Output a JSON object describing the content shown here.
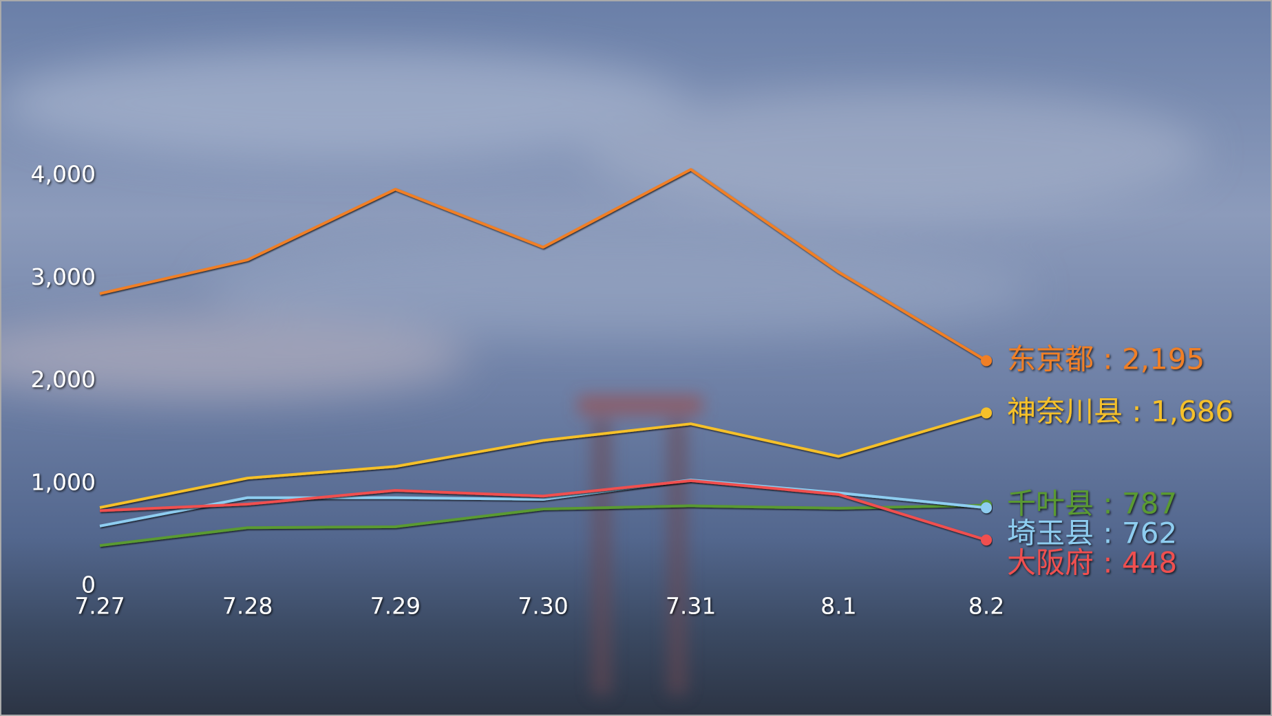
{
  "chart_data": {
    "type": "line",
    "categories": [
      "7.27",
      "7.28",
      "7.29",
      "7.30",
      "7.31",
      "8.1",
      "8.2"
    ],
    "ylim": [
      0,
      4000
    ],
    "yticks": [
      0,
      {
        "value": 1000,
        "label": "1,000"
      },
      {
        "value": 2000,
        "label": "2,000"
      },
      {
        "value": 3000,
        "label": "3,000"
      },
      {
        "value": 4000,
        "label": "4,000"
      }
    ],
    "grid": false,
    "end_label_separator": " : ",
    "series": [
      {
        "name": "东京都",
        "color": "#f07f26",
        "values": [
          2848,
          3177,
          3865,
          3300,
          4058,
          3058,
          2195
        ],
        "value_labels": [
          null,
          null,
          null,
          null,
          null,
          null,
          "2,195"
        ]
      },
      {
        "name": "神奈川县",
        "color": "#f5c02a",
        "values": [
          764,
          1051,
          1164,
          1418,
          1580,
          1263,
          1686
        ],
        "value_labels": [
          null,
          null,
          null,
          null,
          null,
          null,
          "1,686"
        ]
      },
      {
        "name": "千叶县",
        "color": "#5a9a32",
        "values": [
          394,
          568,
          577,
          750,
          781,
          757,
          787
        ],
        "value_labels": [
          null,
          null,
          null,
          null,
          null,
          null,
          "787"
        ]
      },
      {
        "name": "埼玉县",
        "color": "#8ecdf0",
        "values": [
          584,
          860,
          860,
          844,
          1033,
          907,
          762
        ],
        "value_labels": [
          null,
          null,
          null,
          null,
          null,
          null,
          "762"
        ]
      },
      {
        "name": "大阪府",
        "color": "#f05050",
        "values": [
          734,
          797,
          931,
          876,
          1026,
          892,
          448
        ],
        "value_labels": [
          null,
          null,
          null,
          null,
          null,
          null,
          "448"
        ]
      }
    ]
  }
}
